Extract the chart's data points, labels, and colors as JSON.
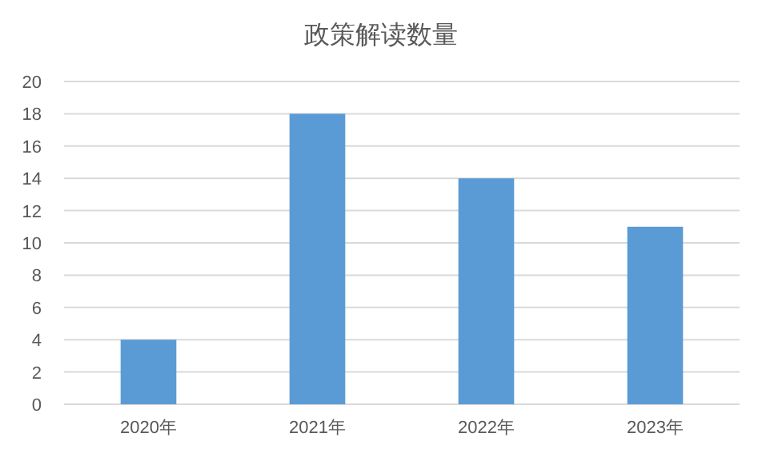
{
  "chart_data": {
    "type": "bar",
    "title": "政策解读数量",
    "categories": [
      "2020年",
      "2021年",
      "2022年",
      "2023年"
    ],
    "values": [
      4,
      18,
      14,
      11
    ],
    "color": "#5b9bd5",
    "ylim": [
      0,
      20
    ],
    "yticks": [
      0,
      2,
      4,
      6,
      8,
      10,
      12,
      14,
      16,
      18,
      20
    ],
    "grid": "y"
  }
}
